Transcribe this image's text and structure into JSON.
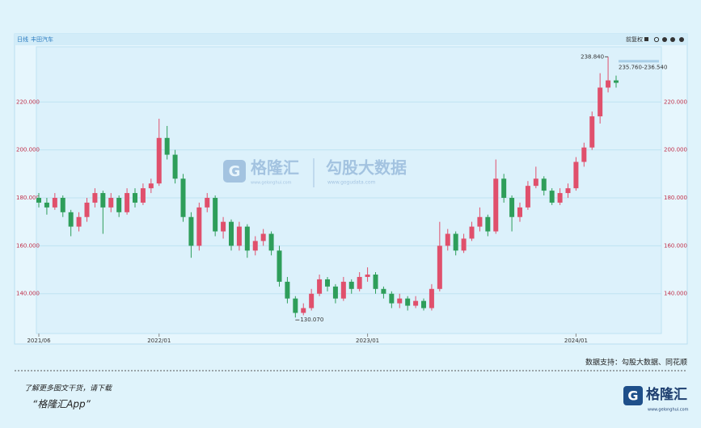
{
  "chart_data": {
    "type": "candlestick",
    "period": "日线",
    "stock": "丰田汽车",
    "adjust": "前复权",
    "categories": [
      "2021/06",
      null,
      null,
      null,
      null,
      null,
      null,
      null,
      null,
      null,
      null,
      null,
      null,
      null,
      null,
      "2022/01",
      null,
      null,
      null,
      null,
      null,
      null,
      null,
      null,
      null,
      null,
      null,
      null,
      null,
      null,
      null,
      null,
      null,
      null,
      null,
      null,
      null,
      null,
      null,
      null,
      null,
      "2023/01",
      null,
      null,
      null,
      null,
      null,
      null,
      null,
      null,
      null,
      null,
      null,
      null,
      null,
      null,
      null,
      null,
      null,
      null,
      null,
      null,
      null,
      null,
      null,
      null,
      null,
      "2024/01",
      null,
      null,
      null,
      null,
      null
    ],
    "ohlc": [
      [
        180,
        182,
        176,
        178
      ],
      [
        178,
        180,
        173,
        176
      ],
      [
        176,
        182,
        175,
        180
      ],
      [
        180,
        181,
        172,
        174
      ],
      [
        174,
        175,
        164,
        168
      ],
      [
        168,
        174,
        166,
        172
      ],
      [
        172,
        180,
        170,
        178
      ],
      [
        178,
        184,
        176,
        182
      ],
      [
        182,
        183,
        165,
        176
      ],
      [
        176,
        182,
        174,
        180
      ],
      [
        180,
        181,
        172,
        174
      ],
      [
        174,
        184,
        173,
        182
      ],
      [
        182,
        184,
        176,
        178
      ],
      [
        178,
        186,
        177,
        184
      ],
      [
        184,
        188,
        182,
        186
      ],
      [
        186,
        213,
        185,
        205
      ],
      [
        205,
        210,
        196,
        198
      ],
      [
        198,
        200,
        186,
        188
      ],
      [
        188,
        190,
        170,
        172
      ],
      [
        172,
        174,
        155,
        160
      ],
      [
        160,
        178,
        158,
        176
      ],
      [
        176,
        182,
        174,
        180
      ],
      [
        180,
        181,
        164,
        166
      ],
      [
        166,
        172,
        163,
        170
      ],
      [
        170,
        171,
        158,
        160
      ],
      [
        160,
        170,
        158,
        168
      ],
      [
        168,
        169,
        155,
        158
      ],
      [
        158,
        164,
        156,
        162
      ],
      [
        162,
        167,
        160,
        165
      ],
      [
        165,
        166,
        156,
        158
      ],
      [
        158,
        160,
        143,
        145
      ],
      [
        145,
        147,
        136,
        138
      ],
      [
        138,
        139,
        130.07,
        132
      ],
      [
        132,
        136,
        131,
        134
      ],
      [
        134,
        142,
        133,
        140
      ],
      [
        140,
        148,
        139,
        146
      ],
      [
        146,
        147,
        141,
        143
      ],
      [
        143,
        144,
        136,
        138
      ],
      [
        138,
        147,
        137,
        145
      ],
      [
        145,
        146,
        140,
        142
      ],
      [
        142,
        149,
        141,
        147
      ],
      [
        147,
        151,
        145,
        148
      ],
      [
        148,
        149,
        140,
        142
      ],
      [
        142,
        143,
        138,
        140
      ],
      [
        140,
        141,
        134,
        136
      ],
      [
        136,
        140,
        134,
        138
      ],
      [
        138,
        139,
        133,
        135
      ],
      [
        135,
        139,
        134,
        137
      ],
      [
        137,
        138,
        133,
        134
      ],
      [
        134,
        144,
        133,
        142
      ],
      [
        142,
        170,
        141,
        160
      ],
      [
        160,
        167,
        158,
        165
      ],
      [
        165,
        166,
        156,
        158
      ],
      [
        158,
        165,
        157,
        163
      ],
      [
        163,
        170,
        162,
        168
      ],
      [
        168,
        176,
        166,
        172
      ],
      [
        172,
        173,
        164,
        166
      ],
      [
        166,
        196,
        165,
        188
      ],
      [
        188,
        190,
        178,
        180
      ],
      [
        180,
        181,
        166,
        172
      ],
      [
        172,
        178,
        170,
        176
      ],
      [
        176,
        187,
        175,
        185
      ],
      [
        185,
        193,
        184,
        188
      ],
      [
        188,
        189,
        181,
        183
      ],
      [
        183,
        184,
        177,
        178
      ],
      [
        178,
        184,
        177,
        182
      ],
      [
        182,
        186,
        180,
        184
      ],
      [
        184,
        197,
        183,
        195
      ],
      [
        195,
        203,
        193,
        201
      ],
      [
        201,
        216,
        200,
        214
      ],
      [
        214,
        232,
        211,
        226
      ],
      [
        226,
        238.84,
        224,
        229
      ],
      [
        229,
        231,
        226,
        228
      ]
    ],
    "up_color": "#e0506c",
    "down_color": "#2e9e5a",
    "ylim": [
      123.4,
      243
    ],
    "yticks": [
      {
        "value": 140,
        "label": "140.000"
      },
      {
        "value": 160,
        "label": "160.000"
      },
      {
        "value": 180,
        "label": "180.000"
      },
      {
        "value": 200,
        "label": "200.000"
      },
      {
        "value": 220,
        "label": "220.000"
      }
    ],
    "grid": true,
    "max_label": "238.840",
    "min_label": "130.070",
    "last_range_label": "235.760-236.540"
  },
  "watermark": {
    "brand": "格隆汇",
    "brand_url": "www.gelonghui.com",
    "data": "勾股大数据",
    "data_url": "www.gogudata.com"
  },
  "footer": {
    "source": "数据支持：勾股大数据、同花顺",
    "promo": "了解更多图文干货，请下载",
    "app": "“格隆汇App”",
    "logo": "格隆汇",
    "logo_url": "www.gelonghui.com"
  }
}
